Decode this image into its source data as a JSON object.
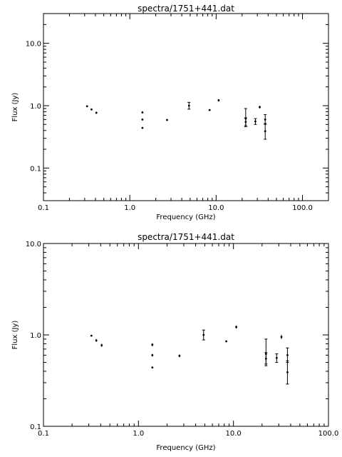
{
  "chart_data": [
    {
      "type": "scatter",
      "title": "spectra/1751+441.dat",
      "xlabel": "Frequency (GHz)",
      "ylabel": "Flux (Jy)",
      "xscale": "log",
      "yscale": "log",
      "xlim": [
        0.1,
        200
      ],
      "ylim": [
        0.03,
        30
      ],
      "xticks": [
        "0.1",
        "1.0",
        "10.0",
        "100.0"
      ],
      "yticks": [
        "0.1",
        "1.0",
        "10.0"
      ],
      "grid": false,
      "series": [
        {
          "points": [
            {
              "x": 0.32,
              "y": 0.98,
              "lo": 0.96,
              "hi": 1.0
            },
            {
              "x": 0.36,
              "y": 0.87,
              "lo": 0.84,
              "hi": 0.9
            },
            {
              "x": 0.41,
              "y": 0.77,
              "lo": 0.74,
              "hi": 0.8
            },
            {
              "x": 1.4,
              "y": 0.78,
              "lo": 0.75,
              "hi": 0.81
            },
            {
              "x": 1.4,
              "y": 0.6,
              "lo": 0.58,
              "hi": 0.62
            },
            {
              "x": 1.4,
              "y": 0.44,
              "lo": 0.43,
              "hi": 0.45
            },
            {
              "x": 2.7,
              "y": 0.59,
              "lo": 0.57,
              "hi": 0.61
            },
            {
              "x": 4.85,
              "y": 1.0,
              "lo": 0.88,
              "hi": 1.13
            },
            {
              "x": 8.4,
              "y": 0.85,
              "lo": 0.83,
              "hi": 0.87
            },
            {
              "x": 10.7,
              "y": 1.22,
              "lo": 1.17,
              "hi": 1.27
            },
            {
              "x": 22.0,
              "y": 0.62,
              "lo": 0.48,
              "hi": 0.9
            },
            {
              "x": 22.0,
              "y": 0.55,
              "lo": 0.46,
              "hi": 0.64
            },
            {
              "x": 28.5,
              "y": 0.56,
              "lo": 0.5,
              "hi": 0.62
            },
            {
              "x": 32.0,
              "y": 0.95,
              "lo": 0.9,
              "hi": 1.0
            },
            {
              "x": 37.0,
              "y": 0.6,
              "lo": 0.5,
              "hi": 0.72
            },
            {
              "x": 37.0,
              "y": 0.39,
              "lo": 0.29,
              "hi": 0.52
            }
          ]
        }
      ]
    },
    {
      "type": "scatter",
      "title": "spectra/1751+441.dat",
      "xlabel": "Frequency (GHz)",
      "ylabel": "Flux (Jy)",
      "xscale": "log",
      "yscale": "log",
      "xlim": [
        0.1,
        100
      ],
      "ylim": [
        0.1,
        10
      ],
      "xticks": [
        "0.1",
        "1.0",
        "10.0",
        "100.0"
      ],
      "yticks": [
        "0.1",
        "1.0",
        "10.0"
      ],
      "grid": false,
      "series": [
        {
          "points": [
            {
              "x": 0.32,
              "y": 0.98,
              "lo": 0.96,
              "hi": 1.0
            },
            {
              "x": 0.36,
              "y": 0.87,
              "lo": 0.84,
              "hi": 0.9
            },
            {
              "x": 0.41,
              "y": 0.77,
              "lo": 0.74,
              "hi": 0.8
            },
            {
              "x": 1.4,
              "y": 0.78,
              "lo": 0.75,
              "hi": 0.81
            },
            {
              "x": 1.4,
              "y": 0.6,
              "lo": 0.58,
              "hi": 0.62
            },
            {
              "x": 1.4,
              "y": 0.44,
              "lo": 0.43,
              "hi": 0.45
            },
            {
              "x": 2.7,
              "y": 0.59,
              "lo": 0.57,
              "hi": 0.61
            },
            {
              "x": 4.85,
              "y": 1.0,
              "lo": 0.88,
              "hi": 1.13
            },
            {
              "x": 8.4,
              "y": 0.85,
              "lo": 0.83,
              "hi": 0.87
            },
            {
              "x": 10.7,
              "y": 1.22,
              "lo": 1.17,
              "hi": 1.27
            },
            {
              "x": 22.0,
              "y": 0.62,
              "lo": 0.48,
              "hi": 0.9
            },
            {
              "x": 22.0,
              "y": 0.55,
              "lo": 0.46,
              "hi": 0.64
            },
            {
              "x": 28.5,
              "y": 0.56,
              "lo": 0.5,
              "hi": 0.62
            },
            {
              "x": 32.0,
              "y": 0.95,
              "lo": 0.9,
              "hi": 1.0
            },
            {
              "x": 37.0,
              "y": 0.6,
              "lo": 0.5,
              "hi": 0.72
            },
            {
              "x": 37.0,
              "y": 0.39,
              "lo": 0.29,
              "hi": 0.52
            }
          ]
        }
      ]
    }
  ]
}
